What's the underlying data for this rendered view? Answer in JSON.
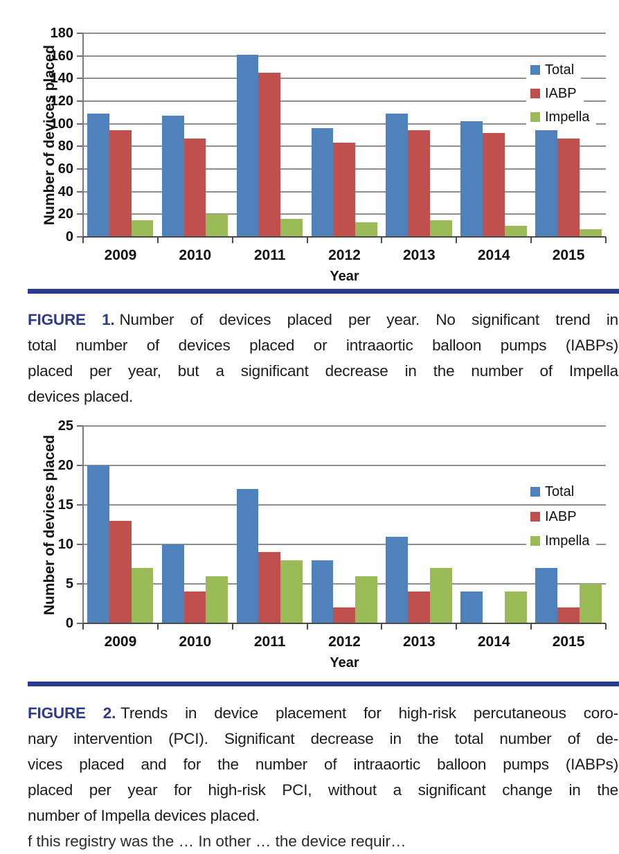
{
  "page": {
    "background": "#ffffff",
    "rule_color": "#2d3a8c",
    "figure_label_color": "#2b3990"
  },
  "charts": [
    {
      "key": "fig1",
      "name": "devices-placed-per-year-chart",
      "chart_data": {
        "type": "bar",
        "categories": [
          "2009",
          "2010",
          "2011",
          "2012",
          "2013",
          "2014",
          "2015"
        ],
        "series": [
          {
            "name": "Total",
            "color": "#4f81bd",
            "values": [
              109,
              107,
              161,
              96,
              109,
              102,
              94
            ]
          },
          {
            "name": "IABP",
            "color": "#c0504d",
            "values": [
              94,
              87,
              145,
              83,
              94,
              92,
              87
            ]
          },
          {
            "name": "Impella",
            "color": "#9bbb59",
            "values": [
              15,
              20,
              16,
              13,
              15,
              10,
              7
            ]
          }
        ],
        "title": "",
        "xlabel": "Year",
        "ylabel": "Number of devices placed",
        "ylim": [
          0,
          180
        ],
        "ytick_step": 20,
        "grid": true,
        "legend_position": "right-top"
      }
    },
    {
      "key": "fig2",
      "name": "high-risk-pci-devices-chart",
      "chart_data": {
        "type": "bar",
        "categories": [
          "2009",
          "2010",
          "2011",
          "2012",
          "2013",
          "2014",
          "2015"
        ],
        "series": [
          {
            "name": "Total",
            "color": "#4f81bd",
            "values": [
              20,
              10,
              17,
              8,
              11,
              4,
              7
            ]
          },
          {
            "name": "IABP",
            "color": "#c0504d",
            "values": [
              13,
              4,
              9,
              2,
              4,
              0,
              2
            ]
          },
          {
            "name": "Impella",
            "color": "#9bbb59",
            "values": [
              7,
              6,
              8,
              6,
              7,
              4,
              5
            ]
          }
        ],
        "title": "",
        "xlabel": "Year",
        "ylabel": "Number of devices placed",
        "ylim": [
          0,
          25
        ],
        "ytick_step": 5,
        "grid": true,
        "legend_position": "right-top"
      }
    }
  ],
  "captions": {
    "fig1": {
      "label": "FIGURE 1.",
      "lines": [
        "Number of devices placed per year. No significant trend in",
        "total number of devices placed or intraaortic balloon pumps (IABPs)",
        "placed per year, but a significant decrease in the number of Impella",
        "devices placed."
      ]
    },
    "fig2": {
      "label": "FIGURE 2.",
      "lines": [
        "Trends in device placement for high-risk percutaneous coro-",
        "nary intervention (PCI). Significant decrease in the total number of de-",
        "vices placed and for the number of intraaortic balloon pumps (IABPs)",
        "placed per year for high-risk PCI, without a significant change in the",
        "number of Impella devices placed."
      ]
    }
  },
  "bottom_fragment": {
    "text": "f this registry was the … In other … the device requir…"
  }
}
